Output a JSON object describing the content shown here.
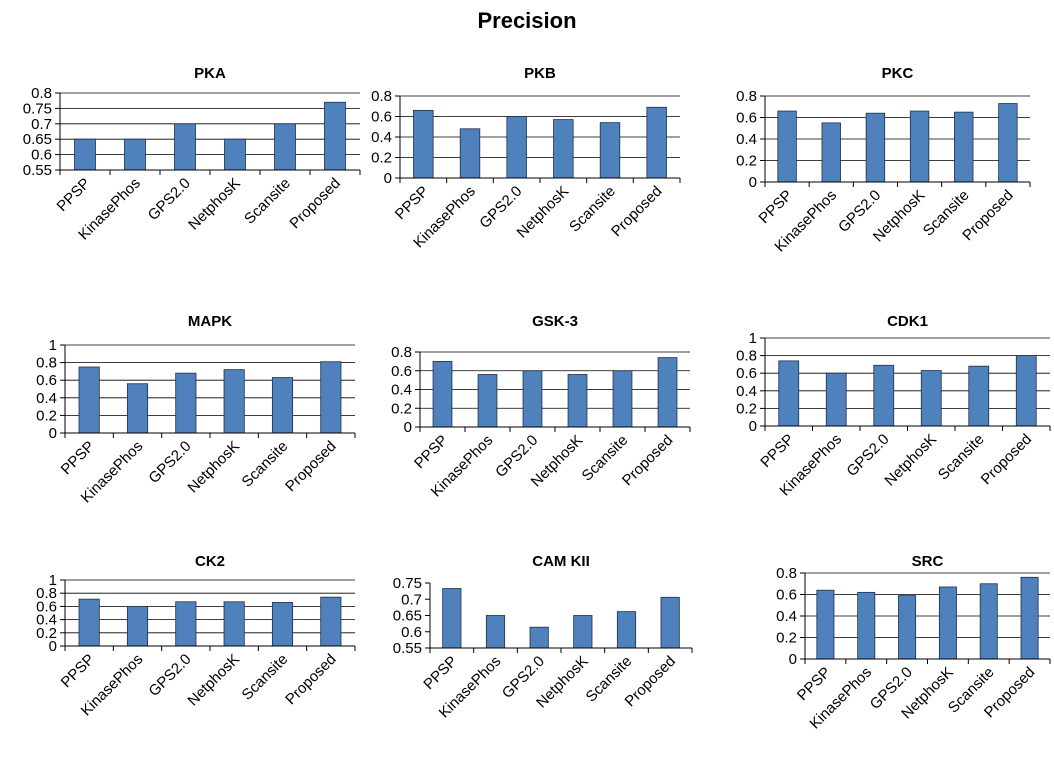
{
  "title": "Precision",
  "chart_data": [
    {
      "type": "bar",
      "title": "PKA",
      "categories": [
        "PPSP",
        "KinasePhos",
        "GPS2.0",
        "NetphosK",
        "Scansite",
        "Proposed"
      ],
      "values": [
        0.65,
        0.65,
        0.7,
        0.65,
        0.7,
        0.77
      ],
      "ylim": [
        0.55,
        0.8
      ],
      "yticks": [
        "0.55",
        "0.6",
        "0.65",
        "0.7",
        "0.75",
        "0.8"
      ],
      "grid": true
    },
    {
      "type": "bar",
      "title": "PKB",
      "categories": [
        "PPSP",
        "KinasePhos",
        "GPS2.0",
        "NetphosK",
        "Scansite",
        "Proposed"
      ],
      "values": [
        0.66,
        0.48,
        0.6,
        0.57,
        0.54,
        0.69
      ],
      "ylim": [
        0,
        0.8
      ],
      "yticks": [
        "0",
        "0.2",
        "0.4",
        "0.6",
        "0.8"
      ],
      "grid": true
    },
    {
      "type": "bar",
      "title": "PKC",
      "categories": [
        "PPSP",
        "KinasePhos",
        "GPS2.0",
        "NetphosK",
        "Scansite",
        "Proposed"
      ],
      "values": [
        0.66,
        0.55,
        0.64,
        0.66,
        0.65,
        0.73
      ],
      "ylim": [
        0,
        0.8
      ],
      "yticks": [
        "0",
        "0.2",
        "0.4",
        "0.6",
        "0.8"
      ],
      "grid": true
    },
    {
      "type": "bar",
      "title": "MAPK",
      "categories": [
        "PPSP",
        "KinasePhos",
        "GPS2.0",
        "NetphosK",
        "Scansite",
        "Proposed"
      ],
      "values": [
        0.75,
        0.56,
        0.68,
        0.72,
        0.63,
        0.81
      ],
      "ylim": [
        0,
        1
      ],
      "yticks": [
        "0",
        "0.2",
        "0.4",
        "0.6",
        "0.8",
        "1"
      ],
      "grid": true
    },
    {
      "type": "bar",
      "title": "GSK-3",
      "categories": [
        "PPSP",
        "KinasePhos",
        "GPS2.0",
        "NetphosK",
        "Scansite",
        "Proposed"
      ],
      "values": [
        0.7,
        0.56,
        0.6,
        0.56,
        0.6,
        0.74
      ],
      "ylim": [
        0,
        0.8
      ],
      "yticks": [
        "0",
        "0.2",
        "0.4",
        "0.6",
        "0.8"
      ],
      "grid": true
    },
    {
      "type": "bar",
      "title": "CDK1",
      "categories": [
        "PPSP",
        "KinasePhos",
        "GPS2.0",
        "NetphosK",
        "Scansite",
        "Proposed"
      ],
      "values": [
        0.74,
        0.6,
        0.69,
        0.63,
        0.68,
        0.8
      ],
      "ylim": [
        0,
        1
      ],
      "yticks": [
        "0",
        "0.2",
        "0.4",
        "0.6",
        "0.8",
        "1"
      ],
      "grid": true
    },
    {
      "type": "bar",
      "title": "CK2",
      "categories": [
        "PPSP",
        "KinasePhos",
        "GPS2.0",
        "NetphosK",
        "Scansite",
        "Proposed"
      ],
      "values": [
        0.71,
        0.6,
        0.67,
        0.67,
        0.66,
        0.74
      ],
      "ylim": [
        0,
        1
      ],
      "yticks": [
        "0",
        "0.2",
        "0.4",
        "0.6",
        "0.8",
        "1"
      ],
      "grid": true
    },
    {
      "type": "bar",
      "title": "CAM KII",
      "categories": [
        "PPSP",
        "KinasePhos",
        "GPS2.0",
        "NetphosK",
        "Scansite",
        "Proposed"
      ],
      "values": [
        0.733,
        0.65,
        0.614,
        0.65,
        0.662,
        0.706
      ],
      "ylim": [
        0.55,
        0.75
      ],
      "yticks": [
        "0.55",
        "0.6",
        "0.65",
        "0.7",
        "0.75"
      ],
      "grid": false
    },
    {
      "type": "bar",
      "title": "SRC",
      "categories": [
        "PPSP",
        "KinasePhos",
        "GPS2.0",
        "NetphosK",
        "Scansite",
        "Proposed"
      ],
      "values": [
        0.64,
        0.62,
        0.59,
        0.67,
        0.7,
        0.76
      ],
      "ylim": [
        0,
        0.8
      ],
      "yticks": [
        "0",
        "0.2",
        "0.4",
        "0.6",
        "0.8"
      ],
      "grid": true
    }
  ]
}
